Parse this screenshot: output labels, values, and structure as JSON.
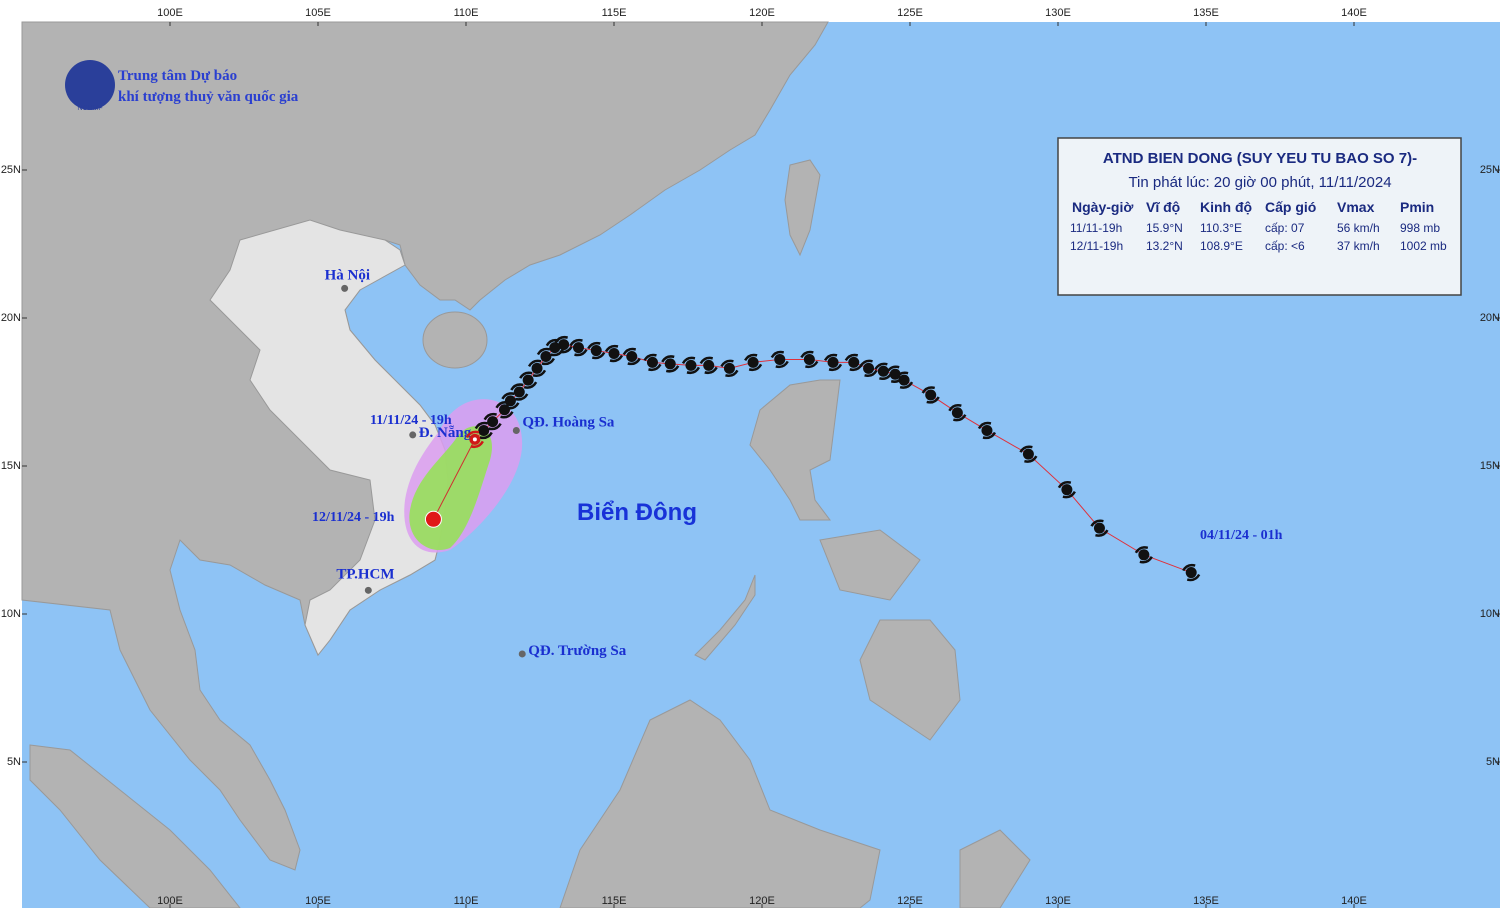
{
  "map": {
    "lon_ticks": [
      {
        "value": 100,
        "label": "100E"
      },
      {
        "value": 105,
        "label": "105E"
      },
      {
        "value": 110,
        "label": "110E"
      },
      {
        "value": 115,
        "label": "115E"
      },
      {
        "value": 120,
        "label": "120E"
      },
      {
        "value": 125,
        "label": "125E"
      },
      {
        "value": 130,
        "label": "130E"
      },
      {
        "value": 135,
        "label": "135E"
      },
      {
        "value": 140,
        "label": "140E"
      }
    ],
    "lat_ticks": [
      {
        "value": 25,
        "label": "25N"
      },
      {
        "value": 20,
        "label": "20N"
      },
      {
        "value": 15,
        "label": "15N"
      },
      {
        "value": 10,
        "label": "10N"
      },
      {
        "value": 5,
        "label": "5N"
      }
    ],
    "agency": {
      "line1": "Trung tâm Dự báo",
      "line2": "khí tượng thuỷ văn quốc gia",
      "logo": "NCHMF"
    },
    "sea_label": "Biển Đông",
    "places": [
      {
        "name": "Hà Nội",
        "lon": 105.9,
        "lat": 21.0
      },
      {
        "name": "Đ. Nẵng",
        "lon": 108.2,
        "lat": 16.05
      },
      {
        "name": "QĐ. Hoàng Sa",
        "lon": 111.7,
        "lat": 16.2
      },
      {
        "name": "TP.HCM",
        "lon": 106.7,
        "lat": 10.8
      },
      {
        "name": "QĐ. Trường Sa",
        "lon": 111.9,
        "lat": 8.65
      }
    ],
    "track": {
      "start_label": "04/11/24 - 01h",
      "current_label": "11/11/24 - 19h",
      "lon": [
        134.5,
        132.9,
        131.4,
        130.3,
        129.0,
        127.6,
        126.6,
        125.7,
        124.8,
        124.5,
        124.1,
        123.6,
        123.1,
        122.4,
        121.6,
        120.6,
        119.7,
        118.9,
        118.2,
        117.6,
        116.9,
        116.3,
        115.6,
        115.0,
        114.4,
        113.8,
        113.3,
        113.0,
        112.7,
        112.4,
        112.1,
        111.8,
        111.5,
        111.3,
        110.9,
        110.6,
        110.3
      ],
      "lat": [
        11.4,
        12.0,
        12.9,
        14.2,
        15.4,
        16.2,
        16.8,
        17.4,
        17.9,
        18.1,
        18.2,
        18.3,
        18.5,
        18.5,
        18.6,
        18.6,
        18.5,
        18.3,
        18.4,
        18.4,
        18.45,
        18.5,
        18.7,
        18.8,
        18.9,
        19.0,
        19.1,
        19.0,
        18.7,
        18.3,
        17.9,
        17.5,
        17.2,
        16.9,
        16.5,
        16.2,
        15.9
      ]
    },
    "forecast": {
      "label": "12/11/24 - 19h",
      "lon": 108.9,
      "lat": 13.2
    },
    "info": {
      "title": "ATND BIEN DONG (SUY YEU TU BAO SO 7)-",
      "issued": "Tin phát lúc: 20 giờ 00 phút, 11/11/2024",
      "columns": [
        "Ngày-giờ",
        "Vĩ độ",
        "Kinh độ",
        "Cấp gió",
        "Vmax",
        "Pmin"
      ],
      "rows": [
        [
          "11/11-19h",
          "15.9°N",
          "110.3°E",
          "cấp: 07",
          "56 km/h",
          "998 mb"
        ],
        [
          "12/11-19h",
          "13.2°N",
          "108.9°E",
          "cấp: <6",
          "37 km/h",
          "1002 mb"
        ]
      ]
    }
  }
}
